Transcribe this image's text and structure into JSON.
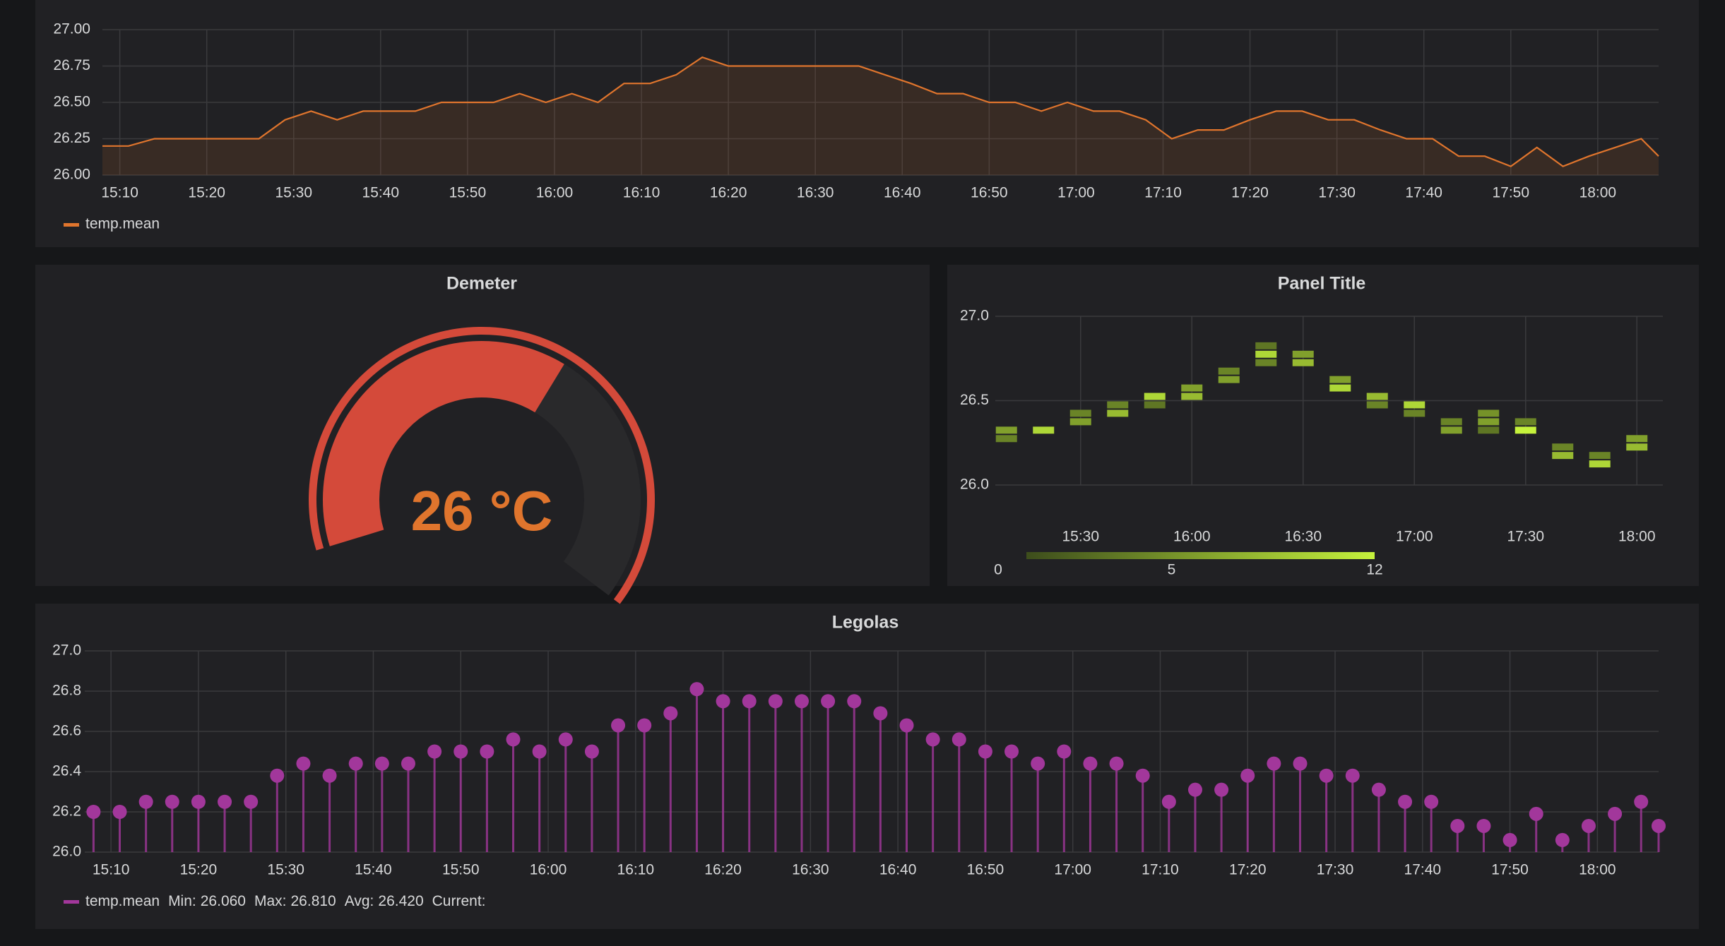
{
  "chart_data": [
    {
      "type": "line",
      "x": [
        "15:08",
        "15:11",
        "15:14",
        "15:17",
        "15:20",
        "15:23",
        "15:26",
        "15:29",
        "15:32",
        "15:35",
        "15:38",
        "15:41",
        "15:44",
        "15:47",
        "15:50",
        "15:53",
        "15:56",
        "15:59",
        "16:02",
        "16:05",
        "16:08",
        "16:11",
        "16:14",
        "16:17",
        "16:20",
        "16:23",
        "16:26",
        "16:29",
        "16:32",
        "16:35",
        "16:38",
        "16:41",
        "16:44",
        "16:47",
        "16:50",
        "16:53",
        "16:56",
        "16:59",
        "17:02",
        "17:05",
        "17:08",
        "17:11",
        "17:14",
        "17:17",
        "17:20",
        "17:23",
        "17:26",
        "17:29",
        "17:32",
        "17:35",
        "17:38",
        "17:41",
        "17:44",
        "17:47",
        "17:50",
        "17:53",
        "17:56",
        "17:59",
        "18:02",
        "18:05",
        "18:07"
      ],
      "series": [
        {
          "name": "temp.mean",
          "color": "#e0752d",
          "values": [
            26.2,
            26.2,
            26.25,
            26.25,
            26.25,
            26.25,
            26.25,
            26.38,
            26.44,
            26.38,
            26.44,
            26.44,
            26.44,
            26.5,
            26.5,
            26.5,
            26.56,
            26.5,
            26.56,
            26.5,
            26.63,
            26.63,
            26.69,
            26.81,
            26.75,
            26.75,
            26.75,
            26.75,
            26.75,
            26.75,
            26.69,
            26.63,
            26.56,
            26.56,
            26.5,
            26.5,
            26.44,
            26.5,
            26.44,
            26.44,
            26.38,
            26.25,
            26.31,
            26.31,
            26.38,
            26.44,
            26.44,
            26.38,
            26.38,
            26.31,
            26.25,
            26.25,
            26.13,
            26.13,
            26.06,
            26.19,
            26.06,
            26.13,
            26.19,
            26.25,
            26.13
          ]
        }
      ],
      "xlim": [
        "15:08",
        "18:07"
      ],
      "xticks": [
        "15:10",
        "15:20",
        "15:30",
        "15:40",
        "15:50",
        "16:00",
        "16:10",
        "16:20",
        "16:30",
        "16:40",
        "16:50",
        "17:00",
        "17:10",
        "17:20",
        "17:30",
        "17:40",
        "17:50",
        "18:00"
      ],
      "ylim": [
        26,
        27
      ],
      "yticks": [
        {
          "value": 26,
          "label": "26.00"
        },
        26.25,
        {
          "value": 26.5,
          "label": "26.50"
        },
        26.75,
        {
          "value": 27,
          "label": "27.00"
        }
      ],
      "grid": true,
      "fill": true
    },
    {
      "type": "gauge",
      "title": "Demeter",
      "value": 26,
      "unit": "°C",
      "min": 0,
      "max": 44,
      "color": "#d44a3a",
      "text_color": "#e0752d"
    },
    {
      "type": "heatmap",
      "title": "Panel Title",
      "xlim": [
        "15:07",
        "18:07"
      ],
      "xticks": [
        "15:30",
        "16:00",
        "16:30",
        "17:00",
        "17:30",
        "18:00"
      ],
      "ylim": [
        26,
        27
      ],
      "yticks": [
        {
          "value": 26,
          "label": "26.0"
        },
        26.5,
        {
          "value": 27,
          "label": "27.0"
        }
      ],
      "bucket_size": 0.05,
      "cells": [
        {
          "x": "15:10",
          "y": 26.25,
          "count": 4
        },
        {
          "x": "15:10",
          "y": 26.3,
          "count": 6
        },
        {
          "x": "15:20",
          "y": 26.3,
          "count": 10
        },
        {
          "x": "15:30",
          "y": 26.35,
          "count": 6
        },
        {
          "x": "15:30",
          "y": 26.4,
          "count": 4
        },
        {
          "x": "15:40",
          "y": 26.4,
          "count": 8
        },
        {
          "x": "15:40",
          "y": 26.45,
          "count": 4
        },
        {
          "x": "15:50",
          "y": 26.5,
          "count": 10
        },
        {
          "x": "15:50",
          "y": 26.45,
          "count": 3
        },
        {
          "x": "16:00",
          "y": 26.55,
          "count": 6
        },
        {
          "x": "16:00",
          "y": 26.5,
          "count": 8
        },
        {
          "x": "16:10",
          "y": 26.6,
          "count": 6
        },
        {
          "x": "16:10",
          "y": 26.65,
          "count": 4
        },
        {
          "x": "16:20",
          "y": 26.75,
          "count": 10
        },
        {
          "x": "16:20",
          "y": 26.8,
          "count": 3
        },
        {
          "x": "16:20",
          "y": 26.7,
          "count": 4
        },
        {
          "x": "16:30",
          "y": 26.7,
          "count": 8
        },
        {
          "x": "16:30",
          "y": 26.75,
          "count": 6
        },
        {
          "x": "16:40",
          "y": 26.6,
          "count": 6
        },
        {
          "x": "16:40",
          "y": 26.55,
          "count": 10
        },
        {
          "x": "16:50",
          "y": 26.5,
          "count": 8
        },
        {
          "x": "16:50",
          "y": 26.45,
          "count": 4
        },
        {
          "x": "17:00",
          "y": 26.45,
          "count": 10
        },
        {
          "x": "17:00",
          "y": 26.4,
          "count": 4
        },
        {
          "x": "17:10",
          "y": 26.35,
          "count": 4
        },
        {
          "x": "17:10",
          "y": 26.3,
          "count": 6
        },
        {
          "x": "17:20",
          "y": 26.4,
          "count": 5
        },
        {
          "x": "17:20",
          "y": 26.35,
          "count": 6
        },
        {
          "x": "17:20",
          "y": 26.3,
          "count": 3
        },
        {
          "x": "17:30",
          "y": 26.3,
          "count": 12
        },
        {
          "x": "17:30",
          "y": 26.35,
          "count": 4
        },
        {
          "x": "17:40",
          "y": 26.2,
          "count": 4
        },
        {
          "x": "17:40",
          "y": 26.15,
          "count": 8
        },
        {
          "x": "17:50",
          "y": 26.1,
          "count": 10
        },
        {
          "x": "17:50",
          "y": 26.15,
          "count": 4
        },
        {
          "x": "18:00",
          "y": 26.25,
          "count": 6
        },
        {
          "x": "18:00",
          "y": 26.2,
          "count": 8
        }
      ],
      "color_range": [
        0,
        12
      ],
      "legend_ticks": [
        0,
        5,
        12
      ],
      "colors": [
        "#3d4d1c",
        "#c5f23c"
      ]
    },
    {
      "type": "bar",
      "title": "Legolas",
      "points": true,
      "x": [
        "15:08",
        "15:11",
        "15:14",
        "15:17",
        "15:20",
        "15:23",
        "15:26",
        "15:29",
        "15:32",
        "15:35",
        "15:38",
        "15:41",
        "15:44",
        "15:47",
        "15:50",
        "15:53",
        "15:56",
        "15:59",
        "16:02",
        "16:05",
        "16:08",
        "16:11",
        "16:14",
        "16:17",
        "16:20",
        "16:23",
        "16:26",
        "16:29",
        "16:32",
        "16:35",
        "16:38",
        "16:41",
        "16:44",
        "16:47",
        "16:50",
        "16:53",
        "16:56",
        "16:59",
        "17:02",
        "17:05",
        "17:08",
        "17:11",
        "17:14",
        "17:17",
        "17:20",
        "17:23",
        "17:26",
        "17:29",
        "17:32",
        "17:35",
        "17:38",
        "17:41",
        "17:44",
        "17:47",
        "17:50",
        "17:53",
        "17:56",
        "17:59",
        "18:02",
        "18:05",
        "18:07"
      ],
      "series": [
        {
          "name": "temp.mean",
          "color": "#a2379b",
          "values": [
            26.2,
            26.2,
            26.25,
            26.25,
            26.25,
            26.25,
            26.25,
            26.38,
            26.44,
            26.38,
            26.44,
            26.44,
            26.44,
            26.5,
            26.5,
            26.5,
            26.56,
            26.5,
            26.56,
            26.5,
            26.63,
            26.63,
            26.69,
            26.81,
            26.75,
            26.75,
            26.75,
            26.75,
            26.75,
            26.75,
            26.69,
            26.63,
            26.56,
            26.56,
            26.5,
            26.5,
            26.44,
            26.5,
            26.44,
            26.44,
            26.38,
            26.25,
            26.31,
            26.31,
            26.38,
            26.44,
            26.44,
            26.38,
            26.38,
            26.31,
            26.25,
            26.25,
            26.13,
            26.13,
            26.06,
            26.19,
            26.06,
            26.13,
            26.19,
            26.25,
            26.13
          ]
        }
      ],
      "xlim": [
        "15:07",
        "18:07"
      ],
      "xticks": [
        "15:10",
        "15:20",
        "15:30",
        "15:40",
        "15:50",
        "16:00",
        "16:10",
        "16:20",
        "16:30",
        "16:40",
        "16:50",
        "17:00",
        "17:10",
        "17:20",
        "17:30",
        "17:40",
        "17:50",
        "18:00"
      ],
      "ylim": [
        26,
        27
      ],
      "yticks": [
        {
          "value": 26,
          "label": "26.0"
        },
        26.2,
        26.4,
        26.6,
        26.8,
        {
          "value": 27,
          "label": "27.0"
        }
      ],
      "grid": true,
      "legend_stats": [
        {
          "label": "Min:",
          "value": 26.06,
          "value_label": "26.060"
        },
        {
          "label": "Max:",
          "value": 26.81,
          "value_label": "26.810"
        },
        {
          "label": "Avg:",
          "value": 26.42,
          "value_label": "26.420"
        }
      ],
      "current_label": "Current:"
    }
  ]
}
